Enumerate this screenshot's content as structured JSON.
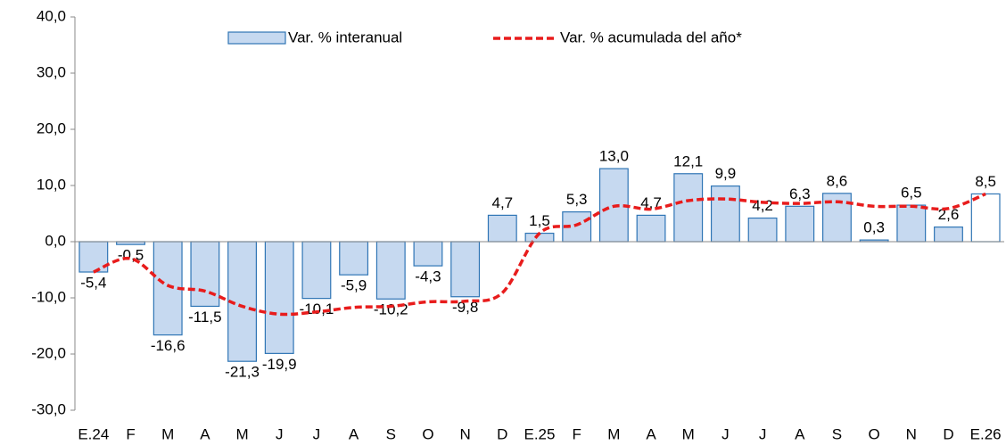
{
  "chart_data": {
    "type": "bar_line",
    "categories": [
      "E.24",
      "F",
      "M",
      "A",
      "M",
      "J",
      "J",
      "A",
      "S",
      "O",
      "N",
      "D",
      "E.25",
      "F",
      "M",
      "A",
      "M",
      "J",
      "J",
      "A",
      "S",
      "O",
      "N",
      "D",
      "E.26"
    ],
    "series": [
      {
        "name": "Var. % interanual",
        "type": "bar",
        "color": "#c6d9f0",
        "stroke": "#2f75b5",
        "colors": [
          "#c6d9f0",
          "#c6d9f0",
          "#c6d9f0",
          "#c6d9f0",
          "#c6d9f0",
          "#c6d9f0",
          "#c6d9f0",
          "#c6d9f0",
          "#c6d9f0",
          "#c6d9f0",
          "#c6d9f0",
          "#c6d9f0",
          "#c6d9f0",
          "#c6d9f0",
          "#c6d9f0",
          "#c6d9f0",
          "#c6d9f0",
          "#c6d9f0",
          "#c6d9f0",
          "#c6d9f0",
          "#c6d9f0",
          "#c6d9f0",
          "#c6d9f0",
          "#c6d9f0",
          "#ffffff"
        ],
        "values": [
          -5.4,
          -0.5,
          -16.6,
          -11.5,
          -21.3,
          -19.9,
          -10.1,
          -5.9,
          -10.2,
          -4.3,
          -9.8,
          4.7,
          1.5,
          5.3,
          13.0,
          4.7,
          12.1,
          9.9,
          4.2,
          6.3,
          8.6,
          0.3,
          6.5,
          2.6,
          8.5
        ],
        "value_labels": [
          "-5,4",
          "-0,5",
          "-16,6",
          "-11,5",
          "-21,3",
          "-19,9",
          "-10,1",
          "-5,9",
          "-10,2",
          "-4,3",
          "-9,8",
          "4,7",
          "1,5",
          "5,3",
          "13,0",
          "4,7",
          "12,1",
          "9,9",
          "4,2",
          "6,3",
          "8,6",
          "0,3",
          "6,5",
          "2,6",
          "8,5"
        ]
      },
      {
        "name": "Var. % acumulada del año*",
        "type": "line",
        "color": "#e81c1c",
        "values": [
          -5.4,
          -3.0,
          -7.8,
          -8.8,
          -11.5,
          -12.9,
          -12.5,
          -11.7,
          -11.5,
          -10.7,
          -10.6,
          -9.1,
          1.5,
          3.0,
          6.3,
          5.8,
          7.3,
          7.6,
          7.0,
          6.8,
          7.1,
          6.3,
          6.3,
          5.9,
          8.5
        ]
      }
    ],
    "ylim": [
      -30,
      40
    ],
    "yticks": [
      {
        "value": -30,
        "label": "-30,0"
      },
      {
        "value": -20,
        "label": "-20,0"
      },
      {
        "value": -10,
        "label": "-10,0"
      },
      {
        "value": 0,
        "label": "0,0"
      },
      {
        "value": 10,
        "label": "10,0"
      },
      {
        "value": 20,
        "label": "20,0"
      },
      {
        "value": 30,
        "label": "30,0"
      },
      {
        "value": 40,
        "label": "40,0"
      }
    ],
    "legend": "top"
  }
}
